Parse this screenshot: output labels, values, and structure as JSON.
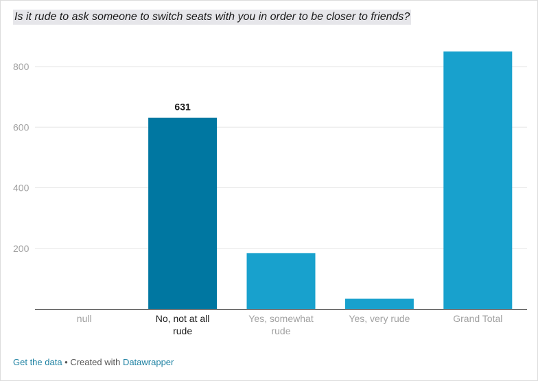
{
  "chart_data": {
    "type": "bar",
    "title": "Is it rude to ask someone to switch seats with you in order to be closer to friends?",
    "categories": [
      "null",
      "No, not at all rude",
      "Yes, somewhat rude",
      "Yes, very rude",
      "Grand Total"
    ],
    "values": [
      0,
      631,
      184,
      34,
      850
    ],
    "highlighted_index": 1,
    "value_labels": [
      "",
      "631",
      "",
      "",
      ""
    ],
    "xlabel": "",
    "ylabel": "",
    "ylim": [
      0,
      850
    ],
    "yticks": [
      200,
      400,
      600,
      800
    ],
    "grid": true,
    "colors": {
      "bar": "#18a1cd",
      "highlight": "#0077a1",
      "grid": "#e6e6e6",
      "baseline": "#333333"
    }
  },
  "footer": {
    "get_data": "Get the data",
    "separator": " • Created with ",
    "credit": "Datawrapper"
  }
}
